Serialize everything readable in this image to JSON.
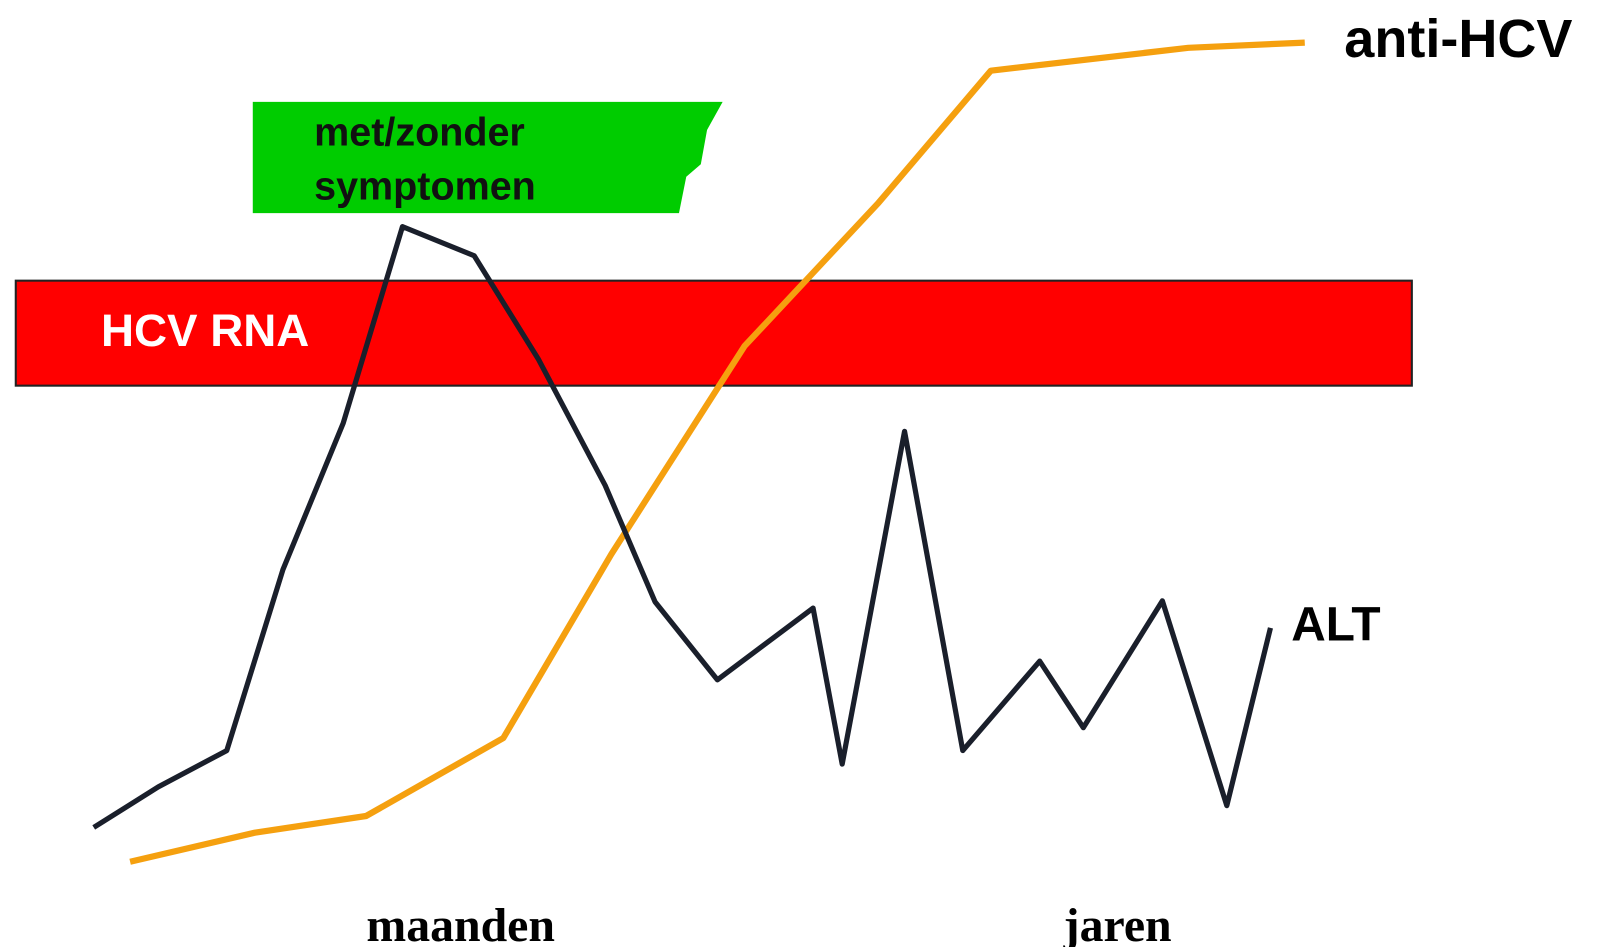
{
  "labels": {
    "anti_hcv": "anti-HCV",
    "alt": "ALT",
    "hcv_rna": "HCV RNA",
    "symptoms": [
      "met/zonder",
      "symptomen"
    ],
    "time": [
      "maanden",
      "jaren"
    ]
  }
}
